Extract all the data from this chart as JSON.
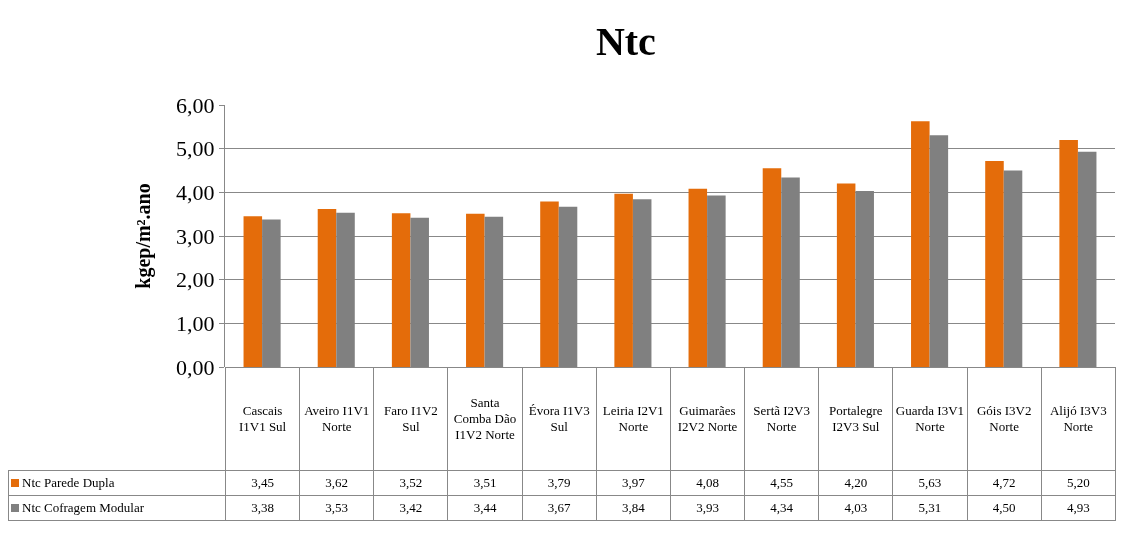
{
  "chart_data": {
    "type": "bar",
    "title": "Ntc",
    "ylabel": "kgep/m².ano",
    "categories": [
      "Cascais I1V1 Sul",
      "Aveiro I1V1 Norte",
      "Faro I1V2 Sul",
      "Santa Comba Dão I1V2 Norte",
      "Évora I1V3 Sul",
      "Leiria I2V1 Norte",
      "Guimarães I2V2 Norte",
      "Sertã I2V3 Norte",
      "Portalegre I2V3 Sul",
      "Guarda I3V1 Norte",
      "Góis I3V2 Norte",
      "Alijó I3V3 Norte"
    ],
    "series": [
      {
        "name": "Ntc Parede Dupla",
        "color": "#e46c0a",
        "values": [
          3.45,
          3.62,
          3.52,
          3.51,
          3.79,
          3.97,
          4.08,
          4.55,
          4.2,
          5.63,
          4.72,
          5.2
        ],
        "value_labels": [
          "3,45",
          "3,62",
          "3,52",
          "3,51",
          "3,79",
          "3,97",
          "4,08",
          "4,55",
          "4,20",
          "5,63",
          "4,72",
          "5,20"
        ]
      },
      {
        "name": "Ntc Cofragem Modular",
        "color": "#808080",
        "values": [
          3.38,
          3.53,
          3.42,
          3.44,
          3.67,
          3.84,
          3.93,
          4.34,
          4.03,
          5.31,
          4.5,
          4.93
        ],
        "value_labels": [
          "3,38",
          "3,53",
          "3,42",
          "3,44",
          "3,67",
          "3,84",
          "3,93",
          "4,34",
          "4,03",
          "5,31",
          "4,50",
          "4,93"
        ]
      }
    ],
    "ylim": [
      0,
      6
    ],
    "yticks": [
      {
        "value": 0,
        "label": "0,00"
      },
      {
        "value": 1,
        "label": "1,00"
      },
      {
        "value": 2,
        "label": "2,00"
      },
      {
        "value": 3,
        "label": "3,00"
      },
      {
        "value": 4,
        "label": "4,00"
      },
      {
        "value": 5,
        "label": "5,00"
      },
      {
        "value": 6,
        "label": "6,00"
      }
    ],
    "grid": "y",
    "legend": "bottom"
  }
}
